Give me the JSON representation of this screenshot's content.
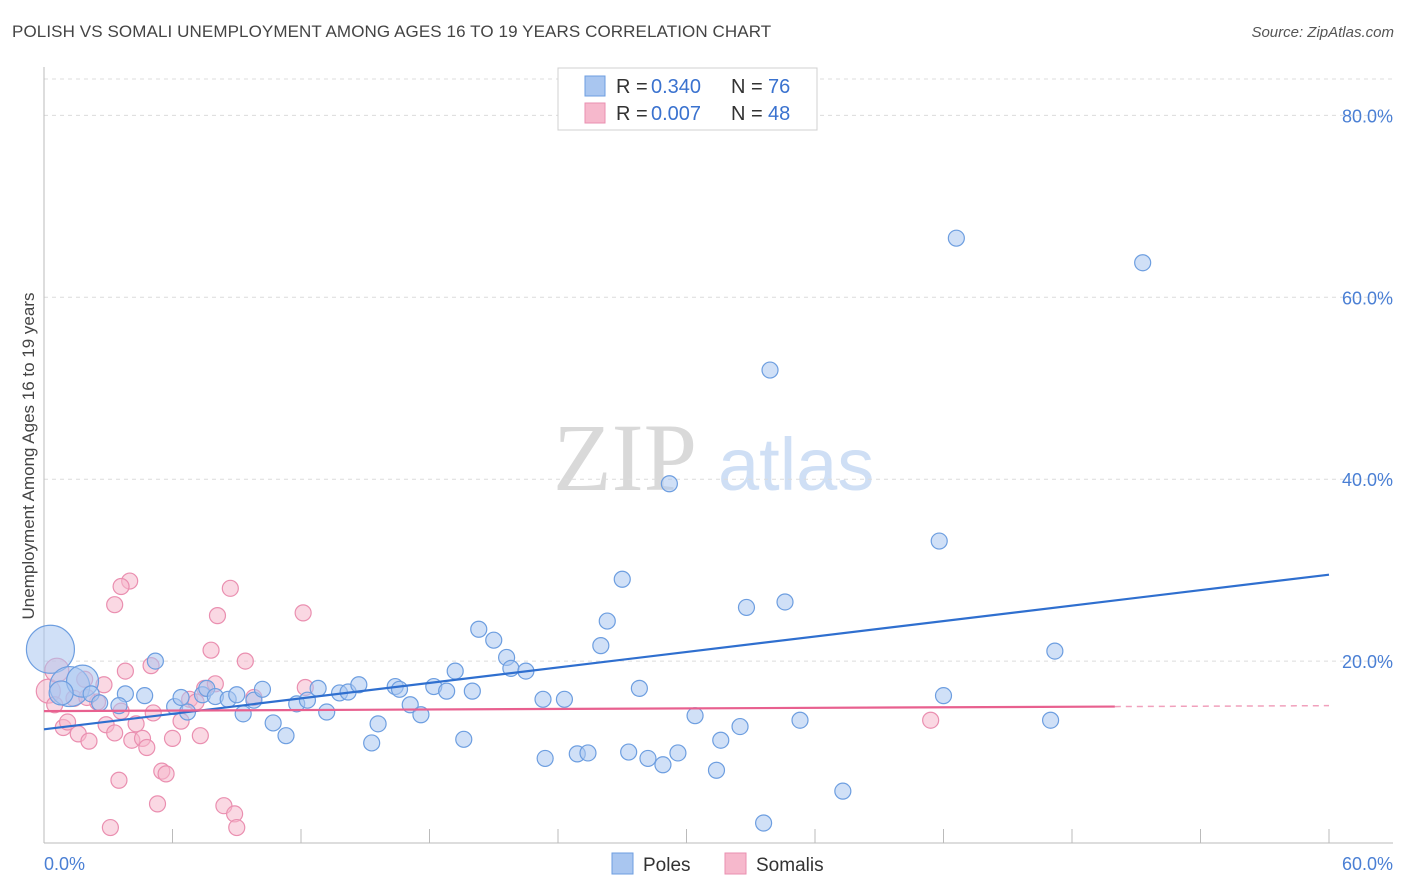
{
  "title": "POLISH VS SOMALI UNEMPLOYMENT AMONG AGES 16 TO 19 YEARS CORRELATION CHART",
  "source": "Source: ZipAtlas.com",
  "watermark": {
    "zip": "ZIP",
    "atlas": "atlas"
  },
  "colors": {
    "poles_fill": "#a9c6f0",
    "poles_stroke": "#6d9ee0",
    "poles_line": "#2f6fcf",
    "somalis_fill": "#f6b8cc",
    "somalis_stroke": "#ea8fb0",
    "somalis_line": "#e8608f",
    "tick_text": "#4a7fd4",
    "grid": "#dcdcdc"
  },
  "legend": {
    "rows": [
      {
        "r_label": "R = ",
        "r_value": "0.340",
        "n_label": "N = ",
        "n_value": "76"
      },
      {
        "r_label": "R = ",
        "r_value": "0.007",
        "n_label": "N = ",
        "n_value": "48"
      }
    ]
  },
  "bottom_legend": {
    "poles": "Poles",
    "somalis": "Somalis"
  },
  "chart_data": {
    "type": "scatter",
    "title": "POLISH VS SOMALI UNEMPLOYMENT AMONG AGES 16 TO 19 YEARS CORRELATION CHART",
    "xlabel": "",
    "ylabel": "Unemployment Among Ages 16 to 19 years",
    "xlim": [
      0,
      60
    ],
    "ylim": [
      0,
      84
    ],
    "x_tick_labels": [
      {
        "value": 0,
        "label": "0.0%"
      },
      {
        "value": 60,
        "label": "60.0%"
      }
    ],
    "y_tick_labels": [
      {
        "value": 20,
        "label": "20.0%"
      },
      {
        "value": 40,
        "label": "40.0%"
      },
      {
        "value": 60,
        "label": "60.0%"
      },
      {
        "value": 80,
        "label": "80.0%"
      }
    ],
    "series": [
      {
        "name": "Poles",
        "R": 0.34,
        "N": 76,
        "trend": {
          "x": [
            0,
            60
          ],
          "y": [
            12.5,
            29.5
          ]
        },
        "points": [
          {
            "x": 0.3,
            "y": 21.3,
            "s": 3
          },
          {
            "x": 1.2,
            "y": 17.2,
            "s": 2.5
          },
          {
            "x": 1.8,
            "y": 17.8,
            "s": 2
          },
          {
            "x": 0.8,
            "y": 16.5,
            "s": 1.5
          },
          {
            "x": 2.2,
            "y": 16.4
          },
          {
            "x": 2.6,
            "y": 15.4
          },
          {
            "x": 3.8,
            "y": 16.4
          },
          {
            "x": 3.5,
            "y": 15.1
          },
          {
            "x": 4.7,
            "y": 16.2
          },
          {
            "x": 5.2,
            "y": 20.0
          },
          {
            "x": 6.1,
            "y": 15.0
          },
          {
            "x": 6.4,
            "y": 16.0
          },
          {
            "x": 6.7,
            "y": 14.4
          },
          {
            "x": 7.4,
            "y": 16.3
          },
          {
            "x": 7.6,
            "y": 17.0
          },
          {
            "x": 8.0,
            "y": 16.1
          },
          {
            "x": 8.6,
            "y": 15.8
          },
          {
            "x": 9.3,
            "y": 14.2
          },
          {
            "x": 9.8,
            "y": 15.7
          },
          {
            "x": 10.2,
            "y": 16.9
          },
          {
            "x": 10.7,
            "y": 13.2
          },
          {
            "x": 11.3,
            "y": 11.8
          },
          {
            "x": 11.8,
            "y": 15.3
          },
          {
            "x": 12.3,
            "y": 15.7
          },
          {
            "x": 12.8,
            "y": 17.0
          },
          {
            "x": 13.2,
            "y": 14.4
          },
          {
            "x": 13.8,
            "y": 16.5
          },
          {
            "x": 14.2,
            "y": 16.6
          },
          {
            "x": 14.7,
            "y": 17.4
          },
          {
            "x": 15.3,
            "y": 11.0
          },
          {
            "x": 15.6,
            "y": 13.1
          },
          {
            "x": 16.4,
            "y": 17.2
          },
          {
            "x": 16.6,
            "y": 16.9
          },
          {
            "x": 17.1,
            "y": 15.2
          },
          {
            "x": 17.6,
            "y": 14.1
          },
          {
            "x": 18.2,
            "y": 17.2
          },
          {
            "x": 18.8,
            "y": 16.7
          },
          {
            "x": 19.2,
            "y": 18.9
          },
          {
            "x": 19.6,
            "y": 11.4
          },
          {
            "x": 20.0,
            "y": 16.7
          },
          {
            "x": 20.3,
            "y": 23.5
          },
          {
            "x": 21.0,
            "y": 22.3
          },
          {
            "x": 21.6,
            "y": 20.4
          },
          {
            "x": 21.8,
            "y": 19.2
          },
          {
            "x": 22.5,
            "y": 18.9
          },
          {
            "x": 23.3,
            "y": 15.8
          },
          {
            "x": 23.4,
            "y": 9.3
          },
          {
            "x": 24.3,
            "y": 15.8
          },
          {
            "x": 24.9,
            "y": 9.8
          },
          {
            "x": 25.4,
            "y": 9.9
          },
          {
            "x": 26.0,
            "y": 21.7
          },
          {
            "x": 26.3,
            "y": 24.4
          },
          {
            "x": 27.0,
            "y": 29.0
          },
          {
            "x": 27.3,
            "y": 10.0
          },
          {
            "x": 27.8,
            "y": 17.0
          },
          {
            "x": 28.2,
            "y": 9.3
          },
          {
            "x": 28.9,
            "y": 8.6
          },
          {
            "x": 29.2,
            "y": 39.5
          },
          {
            "x": 29.6,
            "y": 9.9
          },
          {
            "x": 30.4,
            "y": 14.0
          },
          {
            "x": 31.4,
            "y": 8.0
          },
          {
            "x": 31.6,
            "y": 11.3
          },
          {
            "x": 32.5,
            "y": 12.8
          },
          {
            "x": 32.8,
            "y": 25.9
          },
          {
            "x": 33.6,
            "y": 2.2
          },
          {
            "x": 33.9,
            "y": 52.0
          },
          {
            "x": 34.6,
            "y": 26.5
          },
          {
            "x": 35.3,
            "y": 13.5
          },
          {
            "x": 37.3,
            "y": 5.7
          },
          {
            "x": 41.8,
            "y": 33.2
          },
          {
            "x": 42.0,
            "y": 16.2
          },
          {
            "x": 42.6,
            "y": 66.5
          },
          {
            "x": 47.0,
            "y": 13.5
          },
          {
            "x": 47.2,
            "y": 21.1
          },
          {
            "x": 51.3,
            "y": 63.8
          },
          {
            "x": 9.0,
            "y": 16.3
          }
        ]
      },
      {
        "name": "Somalis",
        "R": 0.007,
        "N": 48,
        "trend": {
          "x": [
            0,
            50
          ],
          "y": [
            14.5,
            15.0
          ]
        },
        "points": [
          {
            "x": 0.2,
            "y": 16.7,
            "s": 1.5
          },
          {
            "x": 0.6,
            "y": 19.0,
            "s": 1.5
          },
          {
            "x": 0.5,
            "y": 15.2
          },
          {
            "x": 0.9,
            "y": 12.7
          },
          {
            "x": 1.1,
            "y": 13.3
          },
          {
            "x": 1.4,
            "y": 15.9
          },
          {
            "x": 1.6,
            "y": 12.0
          },
          {
            "x": 1.9,
            "y": 18.0
          },
          {
            "x": 2.1,
            "y": 11.2
          },
          {
            "x": 2.5,
            "y": 15.5
          },
          {
            "x": 2.8,
            "y": 17.4
          },
          {
            "x": 2.9,
            "y": 13.0
          },
          {
            "x": 3.3,
            "y": 12.1
          },
          {
            "x": 3.5,
            "y": 6.9
          },
          {
            "x": 3.6,
            "y": 14.5
          },
          {
            "x": 3.8,
            "y": 18.9
          },
          {
            "x": 4.1,
            "y": 11.3
          },
          {
            "x": 4.3,
            "y": 13.1
          },
          {
            "x": 4.0,
            "y": 28.8
          },
          {
            "x": 4.6,
            "y": 11.5
          },
          {
            "x": 4.8,
            "y": 10.5
          },
          {
            "x": 5.1,
            "y": 14.3
          },
          {
            "x": 5.3,
            "y": 4.3
          },
          {
            "x": 5.5,
            "y": 7.9
          },
          {
            "x": 5.7,
            "y": 7.6
          },
          {
            "x": 6.0,
            "y": 11.5
          },
          {
            "x": 6.4,
            "y": 13.4
          },
          {
            "x": 6.8,
            "y": 15.8
          },
          {
            "x": 7.1,
            "y": 15.5
          },
          {
            "x": 7.3,
            "y": 11.8
          },
          {
            "x": 7.5,
            "y": 17.0
          },
          {
            "x": 7.8,
            "y": 21.2
          },
          {
            "x": 8.0,
            "y": 17.5
          },
          {
            "x": 8.1,
            "y": 25.0
          },
          {
            "x": 8.4,
            "y": 4.1
          },
          {
            "x": 8.7,
            "y": 28.0
          },
          {
            "x": 8.9,
            "y": 3.2
          },
          {
            "x": 9.4,
            "y": 20.0
          },
          {
            "x": 12.1,
            "y": 25.3
          },
          {
            "x": 12.2,
            "y": 17.1
          },
          {
            "x": 41.4,
            "y": 13.5
          },
          {
            "x": 3.3,
            "y": 26.2
          },
          {
            "x": 3.6,
            "y": 28.2
          },
          {
            "x": 3.1,
            "y": 1.7
          },
          {
            "x": 9.0,
            "y": 1.7
          },
          {
            "x": 2.0,
            "y": 16.0
          },
          {
            "x": 5.0,
            "y": 19.5
          },
          {
            "x": 9.8,
            "y": 16.0
          }
        ]
      }
    ]
  }
}
